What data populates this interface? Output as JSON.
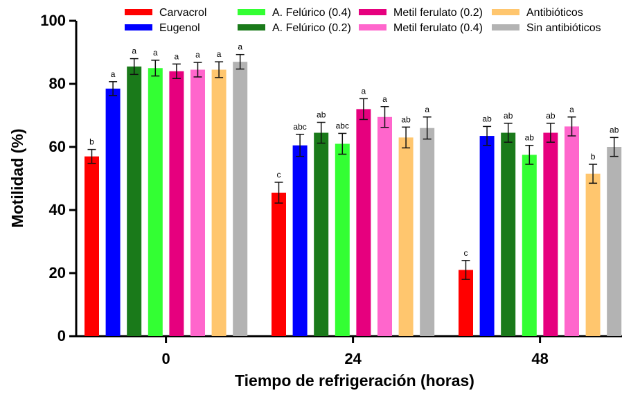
{
  "chart_data": {
    "type": "bar",
    "xlabel": "Tiempo de refrigeración (horas)",
    "ylabel": "Motilidad (%)",
    "ylim": [
      0,
      100
    ],
    "yticks": [
      "0",
      "20",
      "40",
      "60",
      "80",
      "100"
    ],
    "categories": [
      "0",
      "24",
      "48"
    ],
    "legend_position": "top",
    "series": [
      {
        "name": "Carvacrol",
        "color": "#ff0000",
        "values": [
          57,
          45.5,
          21
        ],
        "errors": [
          2.2,
          3.3,
          3
        ],
        "sig": [
          "b",
          "c",
          "c"
        ]
      },
      {
        "name": "Eugenol",
        "color": "#0000ff",
        "values": [
          78.5,
          60.5,
          63.5
        ],
        "errors": [
          2.2,
          3.5,
          3
        ],
        "sig": [
          "a",
          "abc",
          "ab"
        ]
      },
      {
        "name": "A. Felúrico (0.2)",
        "color": "#1a7a1a",
        "values": [
          85.5,
          64.5,
          64.5
        ],
        "errors": [
          2.5,
          3.3,
          3
        ],
        "sig": [
          "a",
          "ab",
          "ab"
        ]
      },
      {
        "name": "A. Felúrico (0.4)",
        "color": "#33ff33",
        "values": [
          85,
          61,
          57.5
        ],
        "errors": [
          2.5,
          3.3,
          3
        ],
        "sig": [
          "a",
          "abc",
          "ab"
        ]
      },
      {
        "name": "Metil ferulato (0.2)",
        "color": "#e6007e",
        "values": [
          84,
          72,
          64.5
        ],
        "errors": [
          2.3,
          3.3,
          3
        ],
        "sig": [
          "a",
          "a",
          "ab"
        ]
      },
      {
        "name": "Metil ferulato (0.4)",
        "color": "#ff66cc",
        "values": [
          84.5,
          69.5,
          66.5
        ],
        "errors": [
          2.3,
          3.3,
          3
        ],
        "sig": [
          "a",
          "a",
          "a"
        ]
      },
      {
        "name": "Antibióticos",
        "color": "#ffc66e",
        "values": [
          84.5,
          63,
          51.5
        ],
        "errors": [
          2.5,
          3.3,
          3
        ],
        "sig": [
          "a",
          "ab",
          "b"
        ]
      },
      {
        "name": "Sin antibióticos",
        "color": "#b3b3b3",
        "values": [
          87,
          66,
          60
        ],
        "errors": [
          2.3,
          3.5,
          3
        ],
        "sig": [
          "a",
          "a",
          "ab"
        ]
      }
    ],
    "legend_order": [
      "Carvacrol",
      "A. Felúrico (0.4)",
      "Metil ferulato (0.2)",
      "Antibióticos",
      "Eugenol",
      "A. Felúrico (0.2)",
      "Metil ferulato (0.4)",
      "Sin antibióticos"
    ]
  }
}
